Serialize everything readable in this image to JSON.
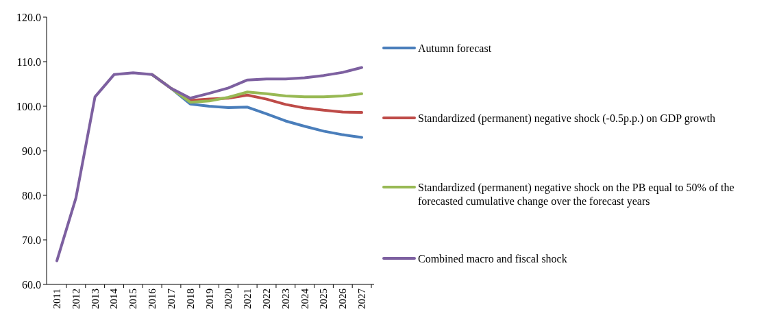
{
  "chart_data": {
    "type": "line",
    "categories": [
      "2011",
      "2012",
      "2013",
      "2014",
      "2015",
      "2016",
      "2017",
      "2018",
      "2019",
      "2020",
      "2021",
      "2022",
      "2023",
      "2024",
      "2025",
      "2026",
      "2027"
    ],
    "series": [
      {
        "name": "Autumn forecast",
        "color": "#4a7ebb",
        "values": [
          null,
          null,
          null,
          null,
          null,
          107.1,
          104.0,
          100.5,
          100.0,
          99.7,
          99.8,
          98.3,
          96.7,
          95.5,
          94.4,
          93.6,
          93.0
        ]
      },
      {
        "name": "Standardized (permanent) negative shock (-0.5p.p.) on GDP growth",
        "color": "#be4b48",
        "values": [
          null,
          null,
          null,
          null,
          null,
          107.1,
          104.0,
          101.3,
          101.6,
          101.8,
          102.5,
          101.6,
          100.4,
          99.6,
          99.1,
          98.7,
          98.6
        ]
      },
      {
        "name": "Standardized (permanent) negative shock on the PB equal to 50% of the forecasted cumulative change over the forecast years",
        "color": "#98b954",
        "values": [
          null,
          null,
          null,
          null,
          null,
          107.1,
          104.0,
          100.9,
          101.2,
          102.0,
          103.2,
          102.8,
          102.3,
          102.1,
          102.1,
          102.3,
          102.8
        ]
      },
      {
        "name": "Combined macro and fiscal shock",
        "color": "#7d60a0",
        "values": [
          65.3,
          79.4,
          102.1,
          107.1,
          107.5,
          107.1,
          104.0,
          101.8,
          102.9,
          104.1,
          105.9,
          106.1,
          106.1,
          106.4,
          106.9,
          107.6,
          108.7
        ]
      }
    ],
    "ylim": [
      60,
      120
    ],
    "yticks": [
      {
        "value": 60,
        "label": "60.0"
      },
      {
        "value": 70,
        "label": "70.0"
      },
      {
        "value": 80,
        "label": "80.0"
      },
      {
        "value": 90,
        "label": "90.0"
      },
      {
        "value": 100,
        "label": "100.0"
      },
      {
        "value": 110,
        "label": "110.0"
      },
      {
        "value": 120,
        "label": "120.0"
      }
    ],
    "grid": false,
    "legend": "right",
    "marker": "none",
    "line_style": "solid"
  }
}
